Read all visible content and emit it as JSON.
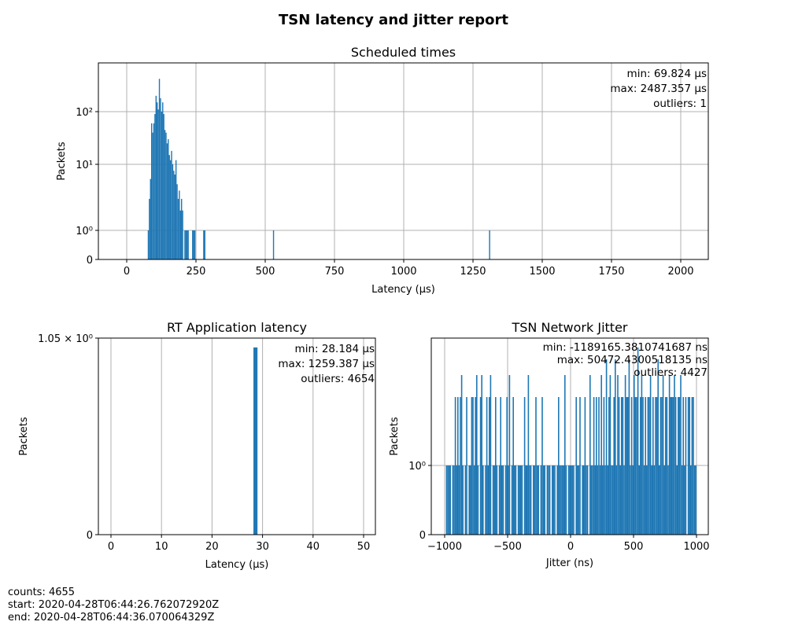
{
  "title": "TSN latency and jitter report",
  "colors": {
    "bar": "#1f77b4",
    "grid": "#b0b0b0",
    "axis": "#000000"
  },
  "chart_data": [
    {
      "type": "bar",
      "title": "Scheduled times",
      "xlabel": "Latency (μs)",
      "ylabel": "Packets",
      "yscale": "symlog",
      "grid": true,
      "xlim": [
        -100,
        2100
      ],
      "xticks": [
        0,
        250,
        500,
        750,
        1000,
        1250,
        1500,
        1750,
        2000
      ],
      "xtick_labels": [
        "0",
        "250",
        "500",
        "750",
        "1000",
        "1250",
        "1500",
        "1750",
        "2000"
      ],
      "yticks": [
        0,
        1,
        10,
        100
      ],
      "ytick_labels": [
        "0",
        "10⁰",
        "10¹",
        "10²"
      ],
      "bin_width": 4,
      "bins": [
        [
          76,
          1
        ],
        [
          80,
          3
        ],
        [
          84,
          6
        ],
        [
          88,
          60
        ],
        [
          92,
          40
        ],
        [
          96,
          60
        ],
        [
          100,
          90
        ],
        [
          104,
          200
        ],
        [
          108,
          150
        ],
        [
          112,
          110
        ],
        [
          116,
          420
        ],
        [
          120,
          180
        ],
        [
          124,
          100
        ],
        [
          128,
          150
        ],
        [
          132,
          90
        ],
        [
          136,
          45
        ],
        [
          140,
          40
        ],
        [
          144,
          25
        ],
        [
          148,
          30
        ],
        [
          152,
          15
        ],
        [
          156,
          12
        ],
        [
          160,
          18
        ],
        [
          164,
          10
        ],
        [
          168,
          8
        ],
        [
          172,
          7
        ],
        [
          176,
          12
        ],
        [
          180,
          5
        ],
        [
          184,
          3
        ],
        [
          188,
          4
        ],
        [
          192,
          2
        ],
        [
          196,
          3
        ],
        [
          200,
          2
        ],
        [
          208,
          1
        ],
        [
          212,
          1
        ],
        [
          216,
          1
        ],
        [
          220,
          1
        ],
        [
          236,
          1
        ],
        [
          240,
          1
        ],
        [
          244,
          1
        ],
        [
          276,
          1
        ],
        [
          280,
          1
        ],
        [
          528,
          1
        ],
        [
          1308,
          1
        ]
      ],
      "annotations": [
        "min: 69.824 μs",
        "max: 2487.357 μs",
        "outliers: 1"
      ]
    },
    {
      "type": "bar",
      "title": "RT Application latency",
      "xlabel": "Latency (μs)",
      "ylabel": "Packets",
      "grid": true,
      "xlim": [
        -2.5,
        52.5
      ],
      "ylim": [
        0,
        1.05
      ],
      "xticks": [
        0,
        10,
        20,
        30,
        40,
        50
      ],
      "xtick_labels": [
        "0",
        "10",
        "20",
        "30",
        "40",
        "50"
      ],
      "yticks": [
        0,
        1.05
      ],
      "ytick_labels": [
        "0",
        "1.05 × 10⁰"
      ],
      "bin_width": 0.8,
      "bins": [
        [
          28.2,
          1
        ]
      ],
      "annotations": [
        "min: 28.184 μs",
        "max: 1259.387 μs",
        "outliers: 4654"
      ]
    },
    {
      "type": "bar",
      "title": "TSN Network Jitter",
      "xlabel": "Jitter (ns)",
      "ylabel": "Packets",
      "yscale": "symlog",
      "grid": true,
      "xlim": [
        -1100,
        1100
      ],
      "xticks": [
        -1000,
        -500,
        0,
        500,
        1000
      ],
      "xtick_labels": [
        "−1000",
        "−500",
        "0",
        "500",
        "1000"
      ],
      "yticks": [
        0,
        1
      ],
      "ytick_labels": [
        "0",
        "10⁰"
      ],
      "bin_start": -1000,
      "bin_width": 10,
      "counts": [
        0,
        1,
        1,
        1,
        1,
        0,
        1,
        1,
        2,
        1,
        2,
        1,
        2,
        3,
        1,
        0,
        1,
        2,
        0,
        1,
        1,
        2,
        2,
        1,
        2,
        3,
        1,
        0,
        2,
        3,
        1,
        0,
        1,
        2,
        1,
        2,
        3,
        0,
        1,
        1,
        2,
        1,
        0,
        1,
        2,
        1,
        1,
        0,
        1,
        2,
        1,
        3,
        0,
        1,
        2,
        1,
        1,
        0,
        1,
        1,
        1,
        1,
        0,
        2,
        1,
        1,
        3,
        1,
        1,
        0,
        1,
        1,
        2,
        1,
        1,
        0,
        1,
        2,
        1,
        1,
        0,
        1,
        1,
        1,
        0,
        1,
        1,
        1,
        0,
        1,
        2,
        1,
        1,
        1,
        1,
        3,
        1,
        0,
        1,
        1,
        1,
        1,
        1,
        0,
        2,
        1,
        1,
        2,
        0,
        1,
        1,
        2,
        1,
        1,
        0,
        3,
        1,
        1,
        2,
        1,
        2,
        1,
        2,
        1,
        3,
        1,
        2,
        1,
        4,
        1,
        2,
        3,
        1,
        1,
        2,
        4,
        1,
        3,
        2,
        1,
        2,
        2,
        1,
        3,
        2,
        2,
        4,
        1,
        2,
        1,
        3,
        2,
        2,
        5,
        1,
        2,
        3,
        2,
        1,
        2,
        1,
        2,
        2,
        3,
        1,
        2,
        1,
        2,
        2,
        4,
        1,
        2,
        2,
        3,
        1,
        2,
        2,
        1,
        3,
        2,
        2,
        2,
        3,
        2,
        1,
        2,
        2,
        3,
        1,
        2,
        1,
        2,
        0,
        2,
        2,
        1,
        2,
        2,
        1,
        1
      ],
      "annotations": [
        "min: -1189165.3810741687 ns",
        "max: 50472.4300518135 ns",
        "outliers: 4427"
      ]
    }
  ],
  "footer": {
    "counts": "counts: 4655",
    "start": "start: 2020-04-28T06:44:26.762072920Z",
    "end": "end: 2020-04-28T06:44:36.070064329Z"
  }
}
